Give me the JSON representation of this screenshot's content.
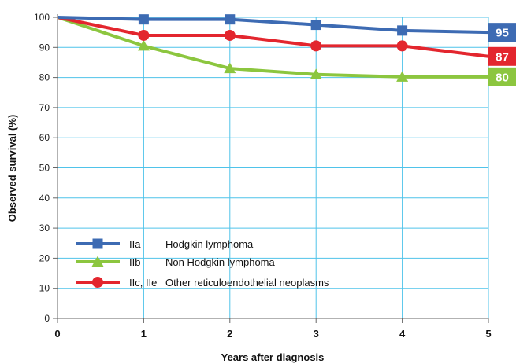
{
  "chart_data": {
    "type": "line",
    "title": "",
    "xlabel": "Years after diagnosis",
    "ylabel": "Observed survival (%)",
    "x": [
      0,
      1,
      2,
      3,
      4,
      5
    ],
    "x_ticks": [
      "0",
      "1",
      "2",
      "3",
      "4",
      "5"
    ],
    "y_ticks": [
      "0",
      "10",
      "20",
      "30",
      "40",
      "50",
      "60",
      "70",
      "80",
      "90",
      "100"
    ],
    "xlim": [
      0,
      5
    ],
    "ylim": [
      0,
      100
    ],
    "grid": true,
    "legend_position": "bottom-left",
    "series": [
      {
        "code": "IIa",
        "name": "Hodgkin lymphoma",
        "color": "#3d6bb3",
        "marker": "square",
        "values": [
          100,
          99.3,
          99.3,
          97.5,
          95.6,
          95
        ],
        "end_label": "95"
      },
      {
        "code": "IIb",
        "name": "Non Hodgkin lymphoma",
        "color": "#8cc63f",
        "marker": "triangle",
        "values": [
          100,
          90.5,
          83,
          81,
          80.2,
          80.2
        ],
        "end_label": "80"
      },
      {
        "code": "IIc, IIe",
        "name": "Other reticuloendothelial neoplasms",
        "color": "#e3262e",
        "marker": "circle",
        "values": [
          100,
          94,
          94,
          90.5,
          90.5,
          87
        ],
        "end_label": "87"
      }
    ]
  }
}
